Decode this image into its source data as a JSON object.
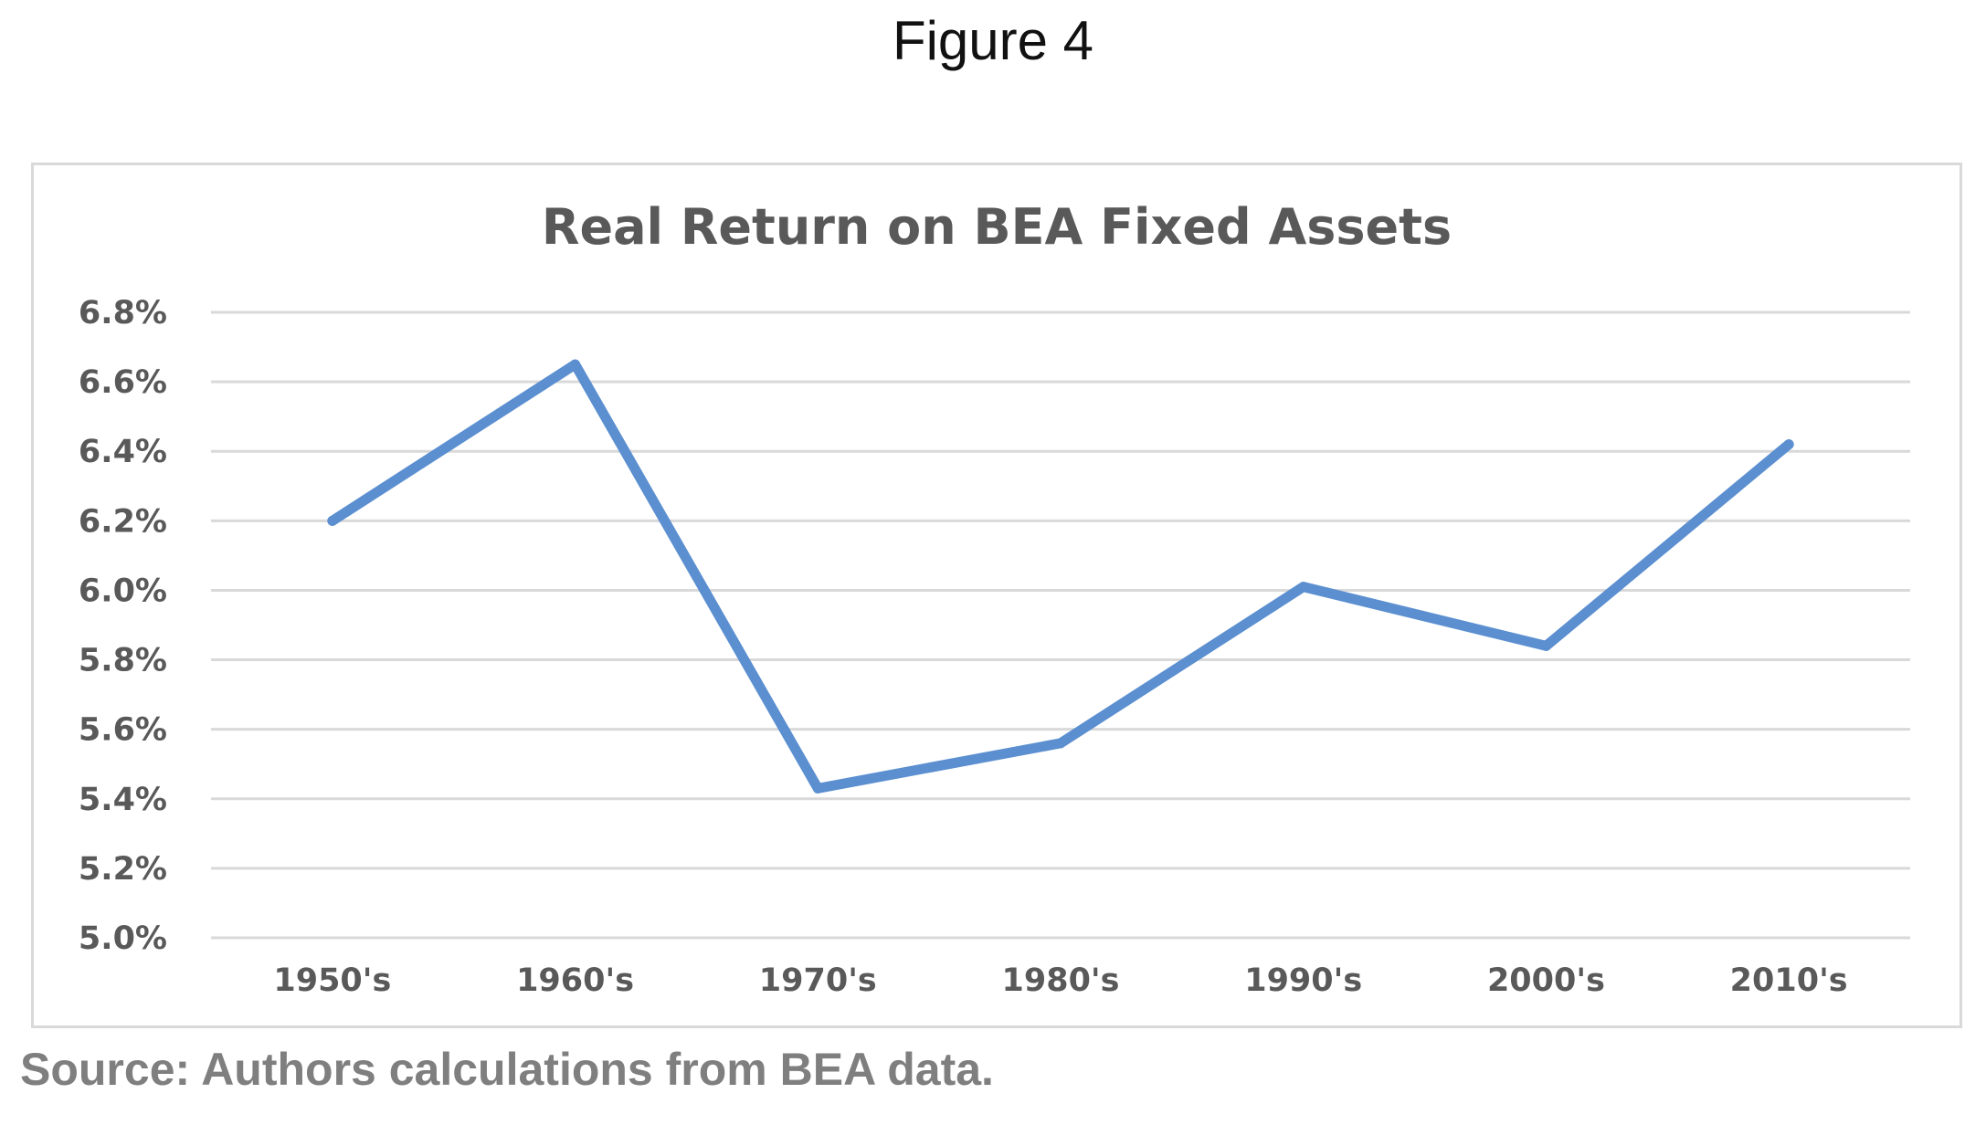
{
  "figure_label": "Figure 4",
  "source_note": "Source: Authors calculations from BEA data.",
  "colors": {
    "line": "#5b8fd0",
    "grid": "#d9d9d9",
    "text": "#595959"
  },
  "chart_data": {
    "type": "line",
    "title": "Real Return on BEA Fixed Assets",
    "xlabel": "",
    "ylabel": "",
    "categories": [
      "1950's",
      "1960's",
      "1970's",
      "1980's",
      "1990's",
      "2000's",
      "2010's"
    ],
    "series": [
      {
        "values": [
          6.2,
          6.65,
          5.43,
          5.56,
          6.01,
          5.84,
          6.42
        ]
      }
    ],
    "ylim": [
      5.0,
      6.8
    ],
    "yticks": [
      "5.0%",
      "5.2%",
      "5.4%",
      "5.6%",
      "5.8%",
      "6.0%",
      "6.2%",
      "6.4%",
      "6.6%",
      "6.8%"
    ],
    "grid": true,
    "legend": "none"
  }
}
